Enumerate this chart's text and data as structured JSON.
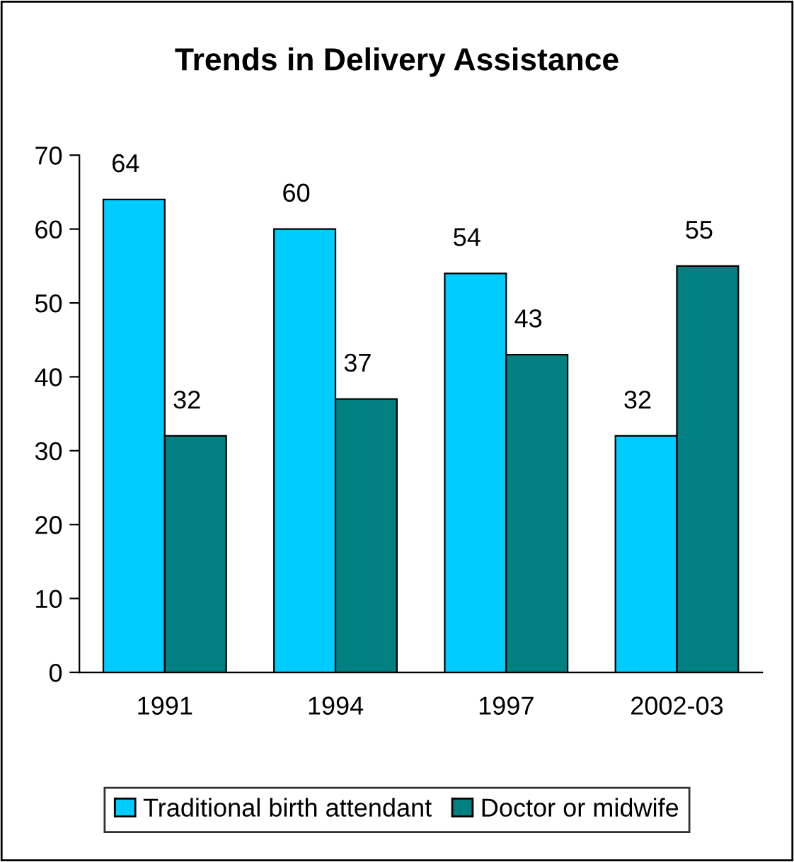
{
  "chart_data": {
    "type": "bar",
    "title": "Trends in Delivery Assistance",
    "categories": [
      "1991",
      "1994",
      "1997",
      "2002-03"
    ],
    "series": [
      {
        "name": "Traditional birth attendant",
        "color": "#00ccff",
        "values": [
          64,
          60,
          54,
          32
        ]
      },
      {
        "name": "Doctor or midwife",
        "color": "#008080",
        "values": [
          32,
          37,
          43,
          55
        ]
      }
    ],
    "ylim": [
      0,
      70
    ],
    "yticks": [
      0,
      10,
      20,
      30,
      40,
      50,
      60,
      70
    ],
    "grid": false,
    "legend": "bottom",
    "data_labels": true
  }
}
